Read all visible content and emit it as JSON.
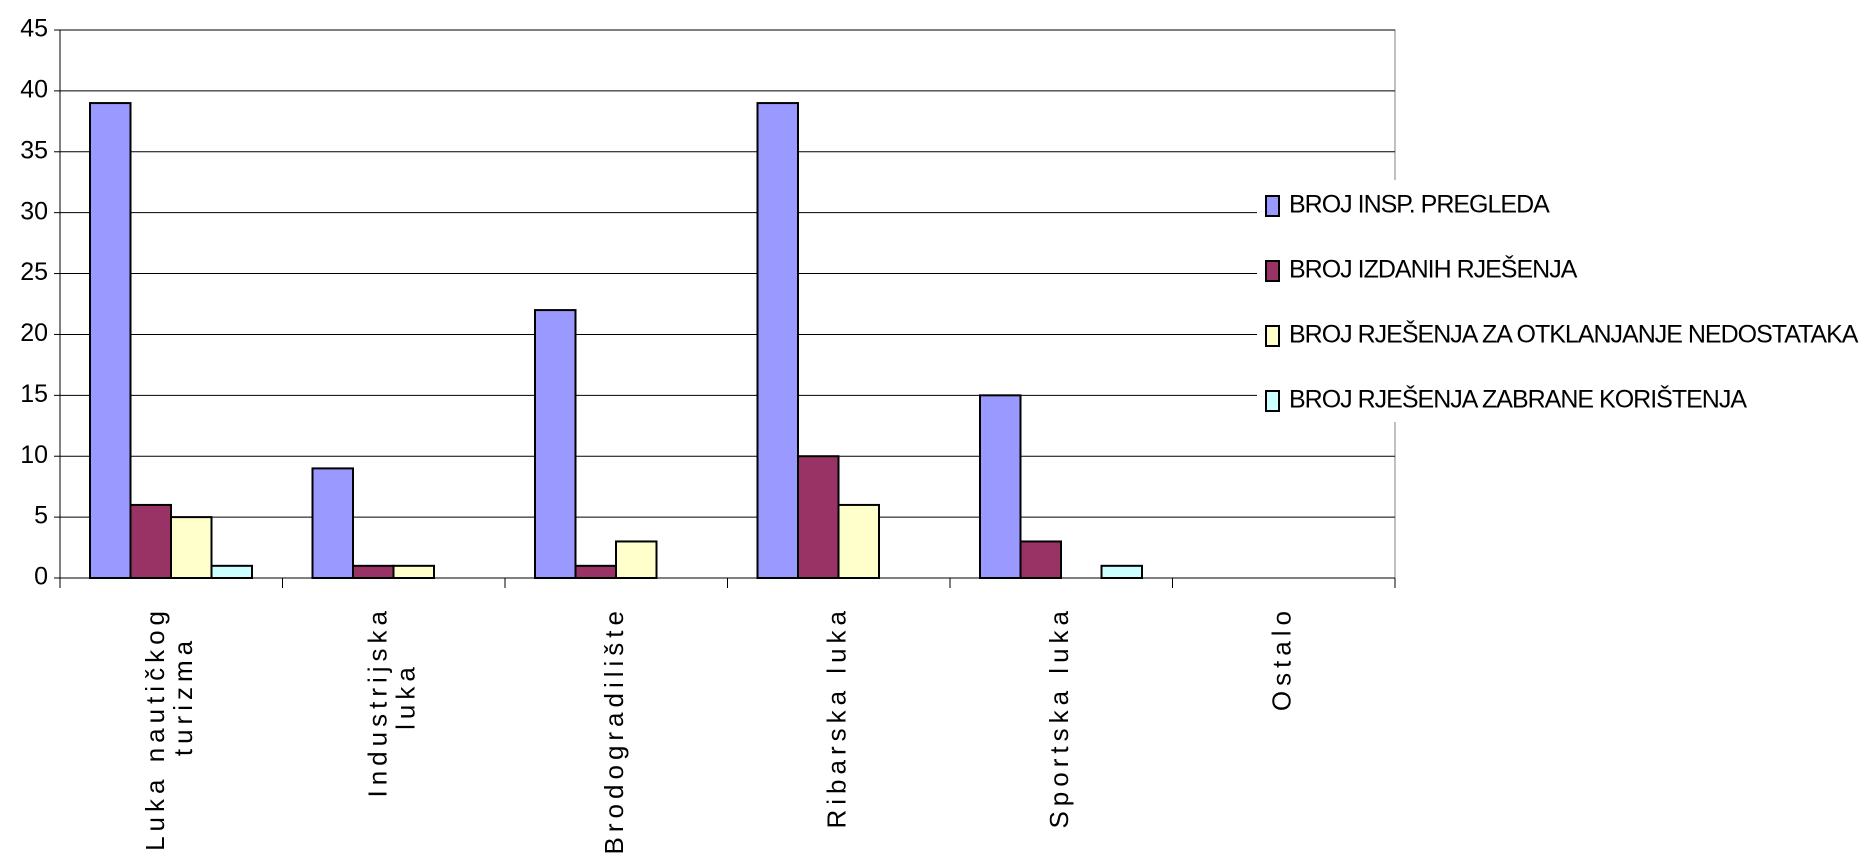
{
  "chart_data": {
    "type": "bar",
    "categories": [
      [
        "Luka nautičkog",
        "turizma"
      ],
      [
        "Industrijska",
        "luka"
      ],
      [
        "Brodogradilište"
      ],
      [
        "Ribarska luka"
      ],
      [
        "Sportska luka"
      ],
      [
        "Ostalo"
      ]
    ],
    "series": [
      {
        "name": "BROJ INSP. PREGLEDA",
        "color": "#9999ff",
        "values": [
          39,
          9,
          22,
          39,
          15,
          0
        ]
      },
      {
        "name": "BROJ IZDANIH RJEŠENJA",
        "color": "#993366",
        "values": [
          6,
          1,
          1,
          10,
          3,
          0
        ]
      },
      {
        "name": "BROJ RJEŠENJA ZA OTKLANJANJE NEDOSTATAKA",
        "color": "#ffffcc",
        "values": [
          5,
          1,
          3,
          6,
          0,
          0
        ]
      },
      {
        "name": "BROJ RJEŠENJA ZABRANE KORIŠTENJA",
        "color": "#ccffff",
        "values": [
          1,
          0,
          0,
          0,
          1,
          0
        ]
      }
    ],
    "ylim": [
      0,
      45
    ],
    "yticks": [
      0,
      5,
      10,
      15,
      20,
      25,
      30,
      35,
      40,
      45
    ],
    "grid": true,
    "legend": "right"
  }
}
